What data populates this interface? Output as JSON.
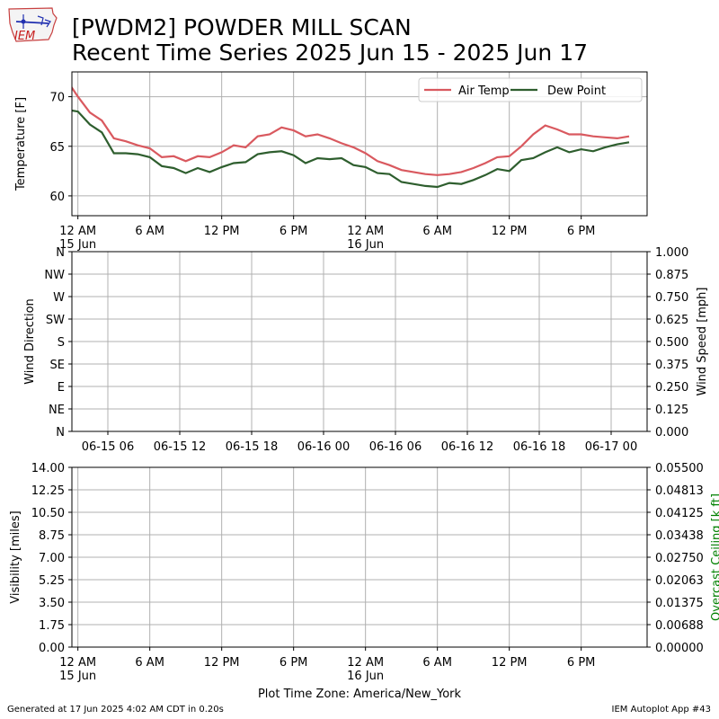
{
  "header": {
    "title_line1": "[PWDM2] POWDER MILL SCAN",
    "title_line2": "Recent Time Series 2025 Jun 15 - 2025 Jun 17",
    "logo_text": "IEM"
  },
  "footer": {
    "generated": "Generated at 17 Jun 2025 4:02 AM CDT in 0.20s",
    "app": "IEM Autoplot App #43",
    "timezone_label": "Plot Time Zone: America/New_York"
  },
  "colors": {
    "air_temp": "#d9595f",
    "dew_point": "#2e5e2e",
    "grid": "#b0b0b0",
    "ceiling_label": "#008000"
  },
  "chart_data": [
    {
      "type": "line",
      "ylabel": "Temperature [F]",
      "ylim": [
        58,
        72.5
      ],
      "yticks": [
        60,
        65,
        70
      ],
      "xlim": [
        -0.5,
        47.5
      ],
      "xticks": [
        {
          "x": 0,
          "label": "12 AM",
          "sub": "15 Jun"
        },
        {
          "x": 6,
          "label": "6 AM",
          "sub": ""
        },
        {
          "x": 12,
          "label": "12 PM",
          "sub": ""
        },
        {
          "x": 18,
          "label": "6 PM",
          "sub": ""
        },
        {
          "x": 24,
          "label": "12 AM",
          "sub": "16 Jun"
        },
        {
          "x": 30,
          "label": "6 AM",
          "sub": ""
        },
        {
          "x": 36,
          "label": "12 PM",
          "sub": ""
        },
        {
          "x": 42,
          "label": "6 PM",
          "sub": ""
        }
      ],
      "grid": true,
      "legend": "top-right",
      "series": [
        {
          "name": "Air Temp",
          "x": [
            -1,
            0,
            1,
            2,
            3,
            4,
            5,
            6,
            7,
            8,
            9,
            10,
            11,
            12,
            13,
            14,
            15,
            16,
            17,
            18,
            19,
            20,
            21,
            22,
            23,
            24,
            25,
            26,
            27,
            28,
            29,
            30,
            31,
            32,
            33,
            34,
            35,
            36,
            37,
            38,
            39,
            40,
            41,
            42,
            43,
            44,
            45,
            46
          ],
          "values": [
            71.8,
            70.0,
            68.4,
            67.6,
            65.8,
            65.5,
            65.1,
            64.8,
            63.9,
            64.0,
            63.5,
            64.0,
            63.9,
            64.4,
            65.1,
            64.9,
            66.0,
            66.2,
            66.9,
            66.6,
            66.0,
            66.2,
            65.8,
            65.3,
            64.9,
            64.3,
            63.5,
            63.1,
            62.6,
            62.4,
            62.2,
            62.1,
            62.2,
            62.4,
            62.8,
            63.3,
            63.9,
            64.0,
            65.0,
            66.2,
            67.1,
            66.7,
            66.2,
            66.2,
            66.0,
            65.9,
            65.8,
            66.0
          ]
        },
        {
          "name": "Dew Point",
          "x": [
            -1,
            0,
            1,
            2,
            3,
            4,
            5,
            6,
            7,
            8,
            9,
            10,
            11,
            12,
            13,
            14,
            15,
            16,
            17,
            18,
            19,
            20,
            21,
            22,
            23,
            24,
            25,
            26,
            27,
            28,
            29,
            30,
            31,
            32,
            33,
            34,
            35,
            36,
            37,
            38,
            39,
            40,
            41,
            42,
            43,
            44,
            45,
            46
          ],
          "values": [
            68.7,
            68.5,
            67.2,
            66.4,
            64.3,
            64.3,
            64.2,
            63.9,
            63.0,
            62.8,
            62.3,
            62.8,
            62.4,
            62.9,
            63.3,
            63.4,
            64.2,
            64.4,
            64.5,
            64.1,
            63.3,
            63.8,
            63.7,
            63.8,
            63.1,
            62.9,
            62.3,
            62.2,
            61.4,
            61.2,
            61.0,
            60.9,
            61.3,
            61.2,
            61.6,
            62.1,
            62.7,
            62.5,
            63.6,
            63.8,
            64.4,
            64.9,
            64.4,
            64.7,
            64.5,
            64.9,
            65.2,
            65.4
          ]
        }
      ]
    },
    {
      "type": "scatter",
      "ylabel": "Wind Direction",
      "ylabel_right": "Wind Speed [mph]",
      "yticks_left": [
        "N",
        "NE",
        "E",
        "SE",
        "S",
        "SW",
        "W",
        "NW",
        "N"
      ],
      "yticks_right": [
        "0.000",
        "0.125",
        "0.250",
        "0.375",
        "0.500",
        "0.625",
        "0.750",
        "0.875",
        "1.000"
      ],
      "ylim_right": [
        0,
        1
      ],
      "xticks": [
        "06-15 06",
        "06-15 12",
        "06-15 18",
        "06-16 00",
        "06-16 06",
        "06-16 12",
        "06-16 18",
        "06-17 00"
      ],
      "grid": true,
      "series": []
    },
    {
      "type": "line",
      "ylabel": "Visibility [miles]",
      "ylabel_right": "Overcast Ceiling [k ft]",
      "ylim": [
        0,
        14
      ],
      "yticks_left": [
        "0.00",
        "1.75",
        "3.50",
        "5.25",
        "7.00",
        "8.75",
        "10.50",
        "12.25",
        "14.00"
      ],
      "ylim_right": [
        0,
        0.055
      ],
      "yticks_right": [
        "0.00000",
        "0.00688",
        "0.01375",
        "0.02063",
        "0.02750",
        "0.03438",
        "0.04125",
        "0.04813",
        "0.05500"
      ],
      "xticks": [
        {
          "x": 0,
          "label": "12 AM",
          "sub": "15 Jun"
        },
        {
          "x": 6,
          "label": "6 AM",
          "sub": ""
        },
        {
          "x": 12,
          "label": "12 PM",
          "sub": ""
        },
        {
          "x": 18,
          "label": "6 PM",
          "sub": ""
        },
        {
          "x": 24,
          "label": "12 AM",
          "sub": "16 Jun"
        },
        {
          "x": 30,
          "label": "6 AM",
          "sub": ""
        },
        {
          "x": 36,
          "label": "12 PM",
          "sub": ""
        },
        {
          "x": 42,
          "label": "6 PM",
          "sub": ""
        }
      ],
      "grid": true,
      "series": []
    }
  ]
}
